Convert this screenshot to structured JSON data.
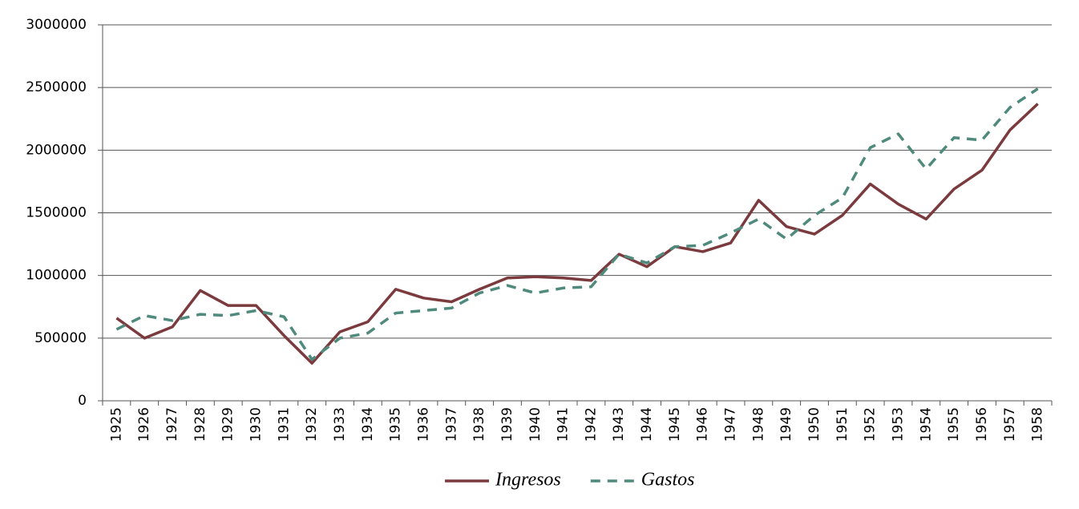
{
  "chart_data": {
    "type": "line",
    "categories": [
      "1925",
      "1926",
      "1927",
      "1928",
      "1929",
      "1930",
      "1931",
      "1932",
      "1933",
      "1934",
      "1935",
      "1936",
      "1937",
      "1938",
      "1939",
      "1940",
      "1941",
      "1942",
      "1943",
      "1944",
      "1945",
      "1946",
      "1947",
      "1948",
      "1949",
      "1950",
      "1951",
      "1952",
      "1953",
      "1954",
      "1955",
      "1956",
      "1957",
      "1958"
    ],
    "series": [
      {
        "name": "Ingresos",
        "color": "#7b3b3e",
        "line_style": "solid",
        "values": [
          660000,
          500000,
          590000,
          880000,
          760000,
          760000,
          520000,
          300000,
          550000,
          630000,
          890000,
          820000,
          790000,
          890000,
          980000,
          990000,
          980000,
          960000,
          1170000,
          1070000,
          1230000,
          1190000,
          1260000,
          1600000,
          1390000,
          1330000,
          1480000,
          1730000,
          1570000,
          1450000,
          1690000,
          1840000,
          2160000,
          2370000
        ]
      },
      {
        "name": "Gastos",
        "color": "#4f8a7c",
        "line_style": "dashed",
        "values": [
          570000,
          680000,
          640000,
          690000,
          680000,
          720000,
          670000,
          330000,
          500000,
          540000,
          700000,
          720000,
          740000,
          860000,
          920000,
          860000,
          900000,
          910000,
          1170000,
          1100000,
          1230000,
          1240000,
          1340000,
          1450000,
          1290000,
          1480000,
          1620000,
          2020000,
          2130000,
          1850000,
          2100000,
          2080000,
          2340000,
          2490000
        ]
      }
    ],
    "ylim": [
      0,
      3000000
    ],
    "yticks": [
      0,
      500000,
      1000000,
      1500000,
      2000000,
      2500000,
      3000000
    ],
    "grid": true,
    "legend": "bottom"
  }
}
